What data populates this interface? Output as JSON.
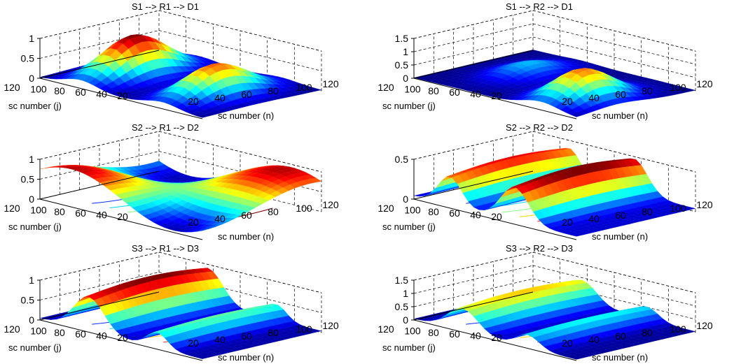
{
  "figure": {
    "type": "surface-grid",
    "rows": 3,
    "cols": 2
  },
  "chart_data": [
    {
      "type": "surface",
      "title": "S1 --> R1 --> D1",
      "xlabel": "sc number (n)",
      "ylabel": "sc number (j)",
      "x_ticks": [
        "20",
        "40",
        "60",
        "80",
        "100",
        "120"
      ],
      "y_ticks": [
        "120",
        "100",
        "80",
        "60",
        "40",
        "20"
      ],
      "z_ticks": [
        "0",
        "0.5",
        "1"
      ],
      "zlim": [
        0,
        1
      ],
      "colormap": "jet",
      "contour_floor": true,
      "shape": {
        "kind": "bumps",
        "peaks": [
          {
            "n": 0.25,
            "j": 0.45,
            "h": 1.0,
            "sn": 0.14,
            "sj": 0.35
          },
          {
            "n": 0.75,
            "j": 0.45,
            "h": 0.78,
            "sn": 0.14,
            "sj": 0.35
          }
        ]
      }
    },
    {
      "type": "surface",
      "title": "S1 --> R2 --> D1",
      "xlabel": "sc number (n)",
      "ylabel": "sc number (j)",
      "x_ticks": [
        "20",
        "40",
        "60",
        "80",
        "100",
        "120"
      ],
      "y_ticks": [
        "120",
        "100",
        "80",
        "60",
        "40",
        "20"
      ],
      "z_ticks": [
        "0",
        "0.5",
        "1",
        "1.5"
      ],
      "zlim": [
        0,
        1.5
      ],
      "colormap": "jet",
      "contour_floor": true,
      "shape": {
        "kind": "bumps",
        "peaks": [
          {
            "n": 0.78,
            "j": 0.35,
            "h": 1.15,
            "sn": 0.16,
            "sj": 0.3
          },
          {
            "n": 0.3,
            "j": 0.55,
            "h": 0.45,
            "sn": 0.14,
            "sj": 0.3
          }
        ]
      }
    },
    {
      "type": "surface",
      "title": "S2 --> R1 --> D2",
      "xlabel": "sc number (n)",
      "ylabel": "sc number (j)",
      "x_ticks": [
        "20",
        "40",
        "60",
        "80",
        "100",
        "120"
      ],
      "y_ticks": [
        "120",
        "100",
        "80",
        "60",
        "40",
        "20"
      ],
      "z_ticks": [
        "0",
        "0.5",
        "1"
      ],
      "zlim": [
        0,
        1
      ],
      "colormap": "jet",
      "contour_floor": true,
      "shape": {
        "kind": "wave",
        "base": 0.5,
        "amp": 0.45,
        "fn": 1.6,
        "fj": 1.1
      }
    },
    {
      "type": "surface",
      "title": "S2 --> R2 --> D2",
      "xlabel": "sc number (n)",
      "ylabel": "sc number (j)",
      "x_ticks": [
        "20",
        "40",
        "60",
        "80",
        "100",
        "120"
      ],
      "y_ticks": [
        "120",
        "100",
        "80",
        "60",
        "40",
        "20"
      ],
      "z_ticks": [
        "0",
        "0.5"
      ],
      "zlim": [
        0,
        0.5
      ],
      "colormap": "jet",
      "contour_floor": true,
      "shape": {
        "kind": "ridges",
        "ridges": [
          {
            "n": 0.22,
            "h": 0.42,
            "w": 0.1
          },
          {
            "n": 0.62,
            "h": 0.5,
            "w": 0.12
          }
        ]
      }
    },
    {
      "type": "surface",
      "title": "S3 --> R1 --> D3",
      "xlabel": "sc number (n)",
      "ylabel": "sc number (j)",
      "x_ticks": [
        "20",
        "40",
        "60",
        "80",
        "100",
        "120"
      ],
      "y_ticks": [
        "120",
        "100",
        "80",
        "60",
        "40",
        "20"
      ],
      "z_ticks": [
        "0",
        "0.5",
        "1"
      ],
      "zlim": [
        0,
        1
      ],
      "colormap": "jet",
      "contour_floor": true,
      "shape": {
        "kind": "ridges",
        "ridges": [
          {
            "n": 0.3,
            "h": 1.0,
            "w": 0.13
          },
          {
            "n": 0.72,
            "h": 0.45,
            "w": 0.09
          }
        ]
      }
    },
    {
      "type": "surface",
      "title": "S3 --> R2 --> D3",
      "xlabel": "sc number (n)",
      "ylabel": "sc number (j)",
      "x_ticks": [
        "20",
        "40",
        "60",
        "80",
        "100",
        "120"
      ],
      "y_ticks": [
        "120",
        "100",
        "80",
        "60",
        "40",
        "20"
      ],
      "z_ticks": [
        "0",
        "0.5",
        "1",
        "1.5"
      ],
      "zlim": [
        0,
        1.5
      ],
      "colormap": "jet",
      "contour_floor": true,
      "shape": {
        "kind": "ridges",
        "ridges": [
          {
            "n": 0.3,
            "h": 1.0,
            "w": 0.13
          },
          {
            "n": 0.7,
            "h": 0.55,
            "w": 0.1
          }
        ]
      }
    }
  ]
}
